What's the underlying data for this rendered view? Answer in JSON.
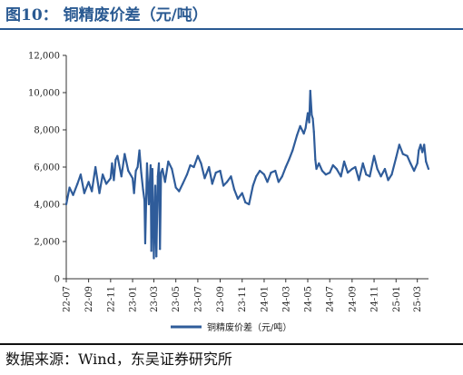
{
  "title": "图10：  铜精废价差（元/吨）",
  "source": "数据来源：Wind，东吴证券研究所",
  "chart_data": {
    "type": "line",
    "title": "",
    "xlabel": "",
    "ylabel": "",
    "ylim": [
      0,
      12000
    ],
    "yticks": [
      0,
      2000,
      4000,
      6000,
      8000,
      10000,
      12000
    ],
    "ytick_labels": [
      "0",
      "2,000",
      "4,000",
      "6,000",
      "8,000",
      "10,000",
      "12,000"
    ],
    "xlim": [
      "2022-07",
      "2025-04"
    ],
    "xtick_labels": [
      "22-07",
      "22-09",
      "22-11",
      "23-01",
      "23-03",
      "23-05",
      "23-07",
      "23-09",
      "23-11",
      "24-01",
      "24-03",
      "24-05",
      "24-07",
      "24-09",
      "24-11",
      "25-01",
      "25-03"
    ],
    "grid": false,
    "legend_position": "bottom",
    "series": [
      {
        "name": "铜精废价差（元/吨）",
        "color": "#2f5c9a",
        "x": [
          "2022-07-01",
          "2022-07-10",
          "2022-07-20",
          "2022-08-01",
          "2022-08-10",
          "2022-08-20",
          "2022-09-01",
          "2022-09-10",
          "2022-09-20",
          "2022-10-01",
          "2022-10-10",
          "2022-10-20",
          "2022-11-01",
          "2022-11-05",
          "2022-11-10",
          "2022-11-15",
          "2022-11-20",
          "2022-11-25",
          "2022-12-01",
          "2022-12-10",
          "2022-12-20",
          "2023-01-01",
          "2023-01-05",
          "2023-01-10",
          "2023-01-15",
          "2023-01-20",
          "2023-01-25",
          "2023-01-30",
          "2023-02-03",
          "2023-02-05",
          "2023-02-10",
          "2023-02-15",
          "2023-02-20",
          "2023-02-22",
          "2023-02-25",
          "2023-03-01",
          "2023-03-05",
          "2023-03-08",
          "2023-03-12",
          "2023-03-15",
          "2023-03-18",
          "2023-03-21",
          "2023-03-25",
          "2023-04-01",
          "2023-04-10",
          "2023-04-20",
          "2023-05-01",
          "2023-05-10",
          "2023-05-20",
          "2023-06-01",
          "2023-06-10",
          "2023-06-20",
          "2023-07-01",
          "2023-07-10",
          "2023-07-20",
          "2023-08-01",
          "2023-08-10",
          "2023-08-20",
          "2023-09-01",
          "2023-09-10",
          "2023-09-20",
          "2023-10-01",
          "2023-10-10",
          "2023-10-20",
          "2023-11-01",
          "2023-11-10",
          "2023-11-20",
          "2023-12-01",
          "2023-12-10",
          "2023-12-20",
          "2024-01-01",
          "2024-01-10",
          "2024-01-20",
          "2024-02-01",
          "2024-02-10",
          "2024-02-20",
          "2024-03-01",
          "2024-03-10",
          "2024-03-20",
          "2024-04-01",
          "2024-04-10",
          "2024-04-20",
          "2024-04-25",
          "2024-05-01",
          "2024-05-05",
          "2024-05-08",
          "2024-05-12",
          "2024-05-15",
          "2024-05-18",
          "2024-05-22",
          "2024-05-25",
          "2024-06-01",
          "2024-06-10",
          "2024-06-20",
          "2024-07-01",
          "2024-07-10",
          "2024-07-20",
          "2024-08-01",
          "2024-08-10",
          "2024-08-20",
          "2024-09-01",
          "2024-09-10",
          "2024-09-20",
          "2024-10-01",
          "2024-10-10",
          "2024-10-20",
          "2024-11-01",
          "2024-11-10",
          "2024-11-20",
          "2024-12-01",
          "2024-12-10",
          "2024-12-20",
          "2025-01-01",
          "2025-01-10",
          "2025-01-20",
          "2025-02-01",
          "2025-02-10",
          "2025-02-20",
          "2025-03-01",
          "2025-03-05",
          "2025-03-10",
          "2025-03-15",
          "2025-03-20",
          "2025-03-25",
          "2025-04-01"
        ],
        "values": [
          4000,
          4900,
          4500,
          5100,
          5600,
          4600,
          5200,
          4700,
          6000,
          4600,
          5600,
          5100,
          5400,
          6200,
          5300,
          6400,
          6600,
          6100,
          5500,
          6700,
          5800,
          5400,
          4600,
          5800,
          6000,
          6900,
          5700,
          4800,
          4200,
          1900,
          6200,
          4000,
          6100,
          1500,
          5900,
          1100,
          5000,
          1200,
          5500,
          6200,
          1600,
          5700,
          5900,
          5200,
          6300,
          5900,
          4900,
          4700,
          5100,
          5600,
          6100,
          6000,
          6600,
          6200,
          5400,
          6000,
          5100,
          5700,
          5800,
          5000,
          5200,
          5500,
          4800,
          4300,
          4600,
          4100,
          4000,
          5000,
          5500,
          5800,
          5600,
          5200,
          5700,
          5800,
          5200,
          5500,
          6000,
          6400,
          6900,
          7700,
          8200,
          7800,
          8100,
          8900,
          8400,
          10100,
          8800,
          8600,
          7900,
          6400,
          5900,
          6200,
          5800,
          5600,
          5700,
          6100,
          5900,
          5500,
          6300,
          5700,
          5900,
          6000,
          5300,
          6200,
          5600,
          5500,
          6600,
          5900,
          5500,
          5900,
          5300,
          5600,
          6500,
          7200,
          6700,
          6600,
          6200,
          5800,
          6200,
          6900,
          7200,
          6800,
          7200,
          6300,
          5900
        ]
      }
    ]
  }
}
